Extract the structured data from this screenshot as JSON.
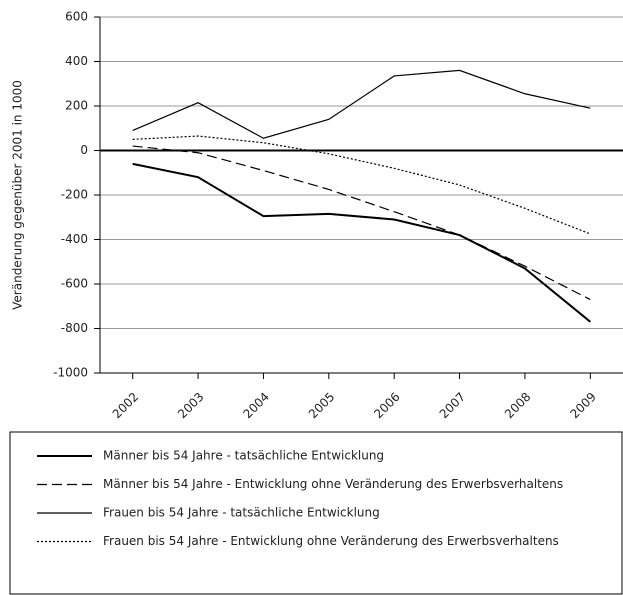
{
  "chart_data": {
    "type": "line",
    "y_label": "Veränderung gegenüber 2001 in 1000",
    "categories": [
      "2002",
      "2003",
      "2004",
      "2005",
      "2006",
      "2007",
      "2008",
      "2009"
    ],
    "ylim": [
      -1000,
      600
    ],
    "yticks": [
      -1000,
      -800,
      -600,
      -400,
      -200,
      0,
      200,
      400,
      600
    ],
    "grid": true,
    "series": [
      {
        "name": "Männer bis 54 Jahre - tatsächliche Entwicklung",
        "color": "#000000",
        "style": "solid",
        "width": 2,
        "values": [
          -60,
          -120,
          -295,
          -285,
          -310,
          -380,
          -530,
          -770
        ]
      },
      {
        "name": "Männer bis 54 Jahre - Entwicklung ohne Veränderung des Erwerbsverhaltens",
        "color": "#000000",
        "style": "dashed",
        "width": 1.2,
        "values": [
          20,
          -10,
          -90,
          -175,
          -275,
          -380,
          -520,
          -670
        ]
      },
      {
        "name": "Frauen bis 54 Jahre - tatsächliche Entwicklung",
        "color": "#000000",
        "style": "solid",
        "width": 1.2,
        "values": [
          90,
          215,
          55,
          140,
          335,
          360,
          255,
          190
        ]
      },
      {
        "name": "Frauen bis 54 Jahre - Entwicklung ohne Veränderung des Erwerbsverhaltens",
        "color": "#000000",
        "style": "dotted",
        "width": 1.2,
        "values": [
          50,
          65,
          35,
          -15,
          -80,
          -155,
          -260,
          -375
        ]
      }
    ]
  }
}
